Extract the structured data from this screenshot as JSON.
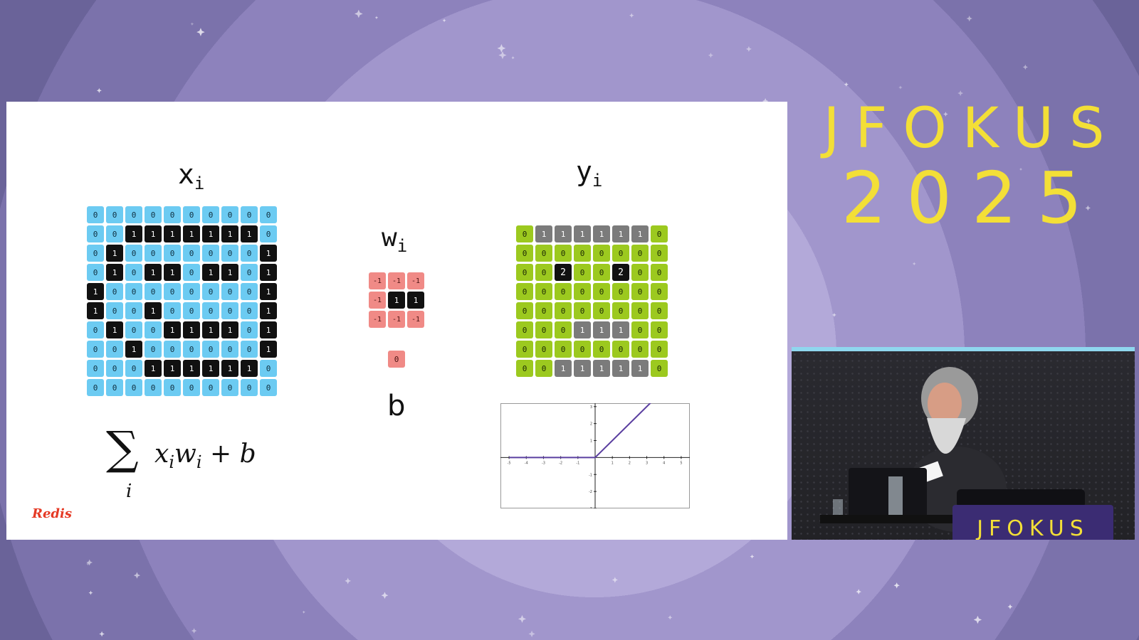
{
  "brand": {
    "line1": "JFOKUS",
    "line2": "2025",
    "color": "#f3df37"
  },
  "slide": {
    "x_label": {
      "base": "x",
      "sub": "i"
    },
    "y_label": {
      "base": "y",
      "sub": "i"
    },
    "w_label": {
      "base": "w",
      "sub": "i"
    },
    "b_label": "b",
    "logo": "Redis",
    "formula": {
      "sum_symbol": "∑",
      "sum_index": "i",
      "expression_html": "x<sub>i</sub>w<sub>i</sub> + b"
    },
    "x_matrix": [
      [
        0,
        0,
        0,
        0,
        0,
        0,
        0,
        0,
        0,
        0
      ],
      [
        0,
        0,
        1,
        1,
        1,
        1,
        1,
        1,
        1,
        0
      ],
      [
        0,
        1,
        0,
        0,
        0,
        0,
        0,
        0,
        0,
        1
      ],
      [
        0,
        1,
        0,
        1,
        1,
        0,
        1,
        1,
        0,
        1
      ],
      [
        1,
        0,
        0,
        0,
        0,
        0,
        0,
        0,
        0,
        1
      ],
      [
        1,
        0,
        0,
        1,
        0,
        0,
        0,
        0,
        0,
        1
      ],
      [
        0,
        1,
        0,
        0,
        1,
        1,
        1,
        1,
        0,
        1
      ],
      [
        0,
        0,
        1,
        0,
        0,
        0,
        0,
        0,
        0,
        1
      ],
      [
        0,
        0,
        0,
        1,
        1,
        1,
        1,
        1,
        1,
        0
      ],
      [
        0,
        0,
        0,
        0,
        0,
        0,
        0,
        0,
        0,
        0
      ]
    ],
    "w_matrix": [
      [
        -1,
        -1,
        -1
      ],
      [
        -1,
        1,
        1
      ],
      [
        -1,
        -1,
        -1
      ]
    ],
    "b_value": 0,
    "y_matrix": [
      [
        0,
        1,
        1,
        1,
        1,
        1,
        1,
        0
      ],
      [
        0,
        0,
        0,
        0,
        0,
        0,
        0,
        0
      ],
      [
        0,
        0,
        2,
        0,
        0,
        2,
        0,
        0
      ],
      [
        0,
        0,
        0,
        0,
        0,
        0,
        0,
        0
      ],
      [
        0,
        0,
        0,
        0,
        0,
        0,
        0,
        0
      ],
      [
        0,
        0,
        0,
        1,
        1,
        1,
        0,
        0
      ],
      [
        0,
        0,
        0,
        0,
        0,
        0,
        0,
        0
      ],
      [
        0,
        0,
        1,
        1,
        1,
        1,
        1,
        0
      ]
    ],
    "colors": {
      "x_zero": "#6ccbf2",
      "x_one": "#111111",
      "w": "#f08a86",
      "w_positive": "#111111",
      "y_zero": "#9cc91f",
      "y_one": "#7b7b7b",
      "y_two": "#111111",
      "relu_line": "#5b3fa0"
    }
  },
  "chart_data": {
    "type": "line",
    "series": [
      {
        "x": [
          -5,
          0,
          3.5
        ],
        "y": [
          0,
          0,
          3.5
        ]
      }
    ],
    "xlim": [
      -5.5,
      5.5
    ],
    "ylim": [
      -3,
      3.2
    ],
    "x_ticks": [
      -5,
      -4,
      -3,
      -2,
      -1,
      1,
      2,
      3,
      4,
      5
    ],
    "y_ticks": [
      -3,
      -2,
      -1,
      1,
      2,
      3
    ],
    "grid": false
  },
  "video": {
    "podium_text": "JFOKUS"
  }
}
